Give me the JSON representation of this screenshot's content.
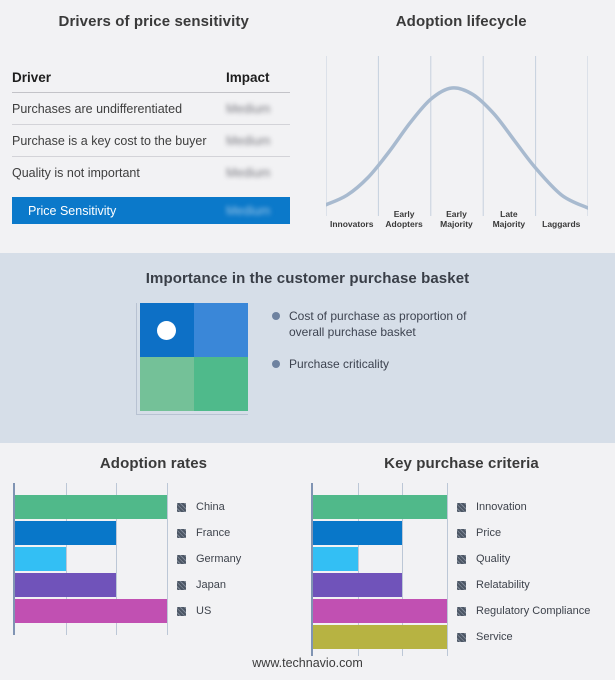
{
  "page": {
    "footer_url": "www.technavio.com"
  },
  "palette": {
    "page_background": "#f2f2f4",
    "band_background": "#d6dee8",
    "accent_blue": "#0b79ca"
  },
  "chart_data": [
    {
      "type": "table",
      "title": "Drivers of price sensitivity",
      "columns": [
        "Driver",
        "Impact"
      ],
      "rows": [
        {
          "driver": "Purchases are undifferentiated",
          "impact": "Medium"
        },
        {
          "driver": "Purchase is a key cost to the buyer",
          "impact": "Medium"
        },
        {
          "driver": "Quality is not important",
          "impact": "Medium"
        }
      ],
      "highlight_row": {
        "driver": "Price Sensitivity",
        "impact": "Medium",
        "background": "#0b79ca"
      }
    },
    {
      "type": "line",
      "title": "Adoption lifecycle",
      "categories": [
        "Innovators",
        "Early Adopters",
        "Early Majority",
        "Late Majority",
        "Laggards"
      ],
      "curve": "bell",
      "curve_points": [
        [
          0,
          0.93
        ],
        [
          0.08,
          0.87
        ],
        [
          0.16,
          0.76
        ],
        [
          0.24,
          0.6
        ],
        [
          0.32,
          0.42
        ],
        [
          0.4,
          0.27
        ],
        [
          0.48,
          0.2
        ],
        [
          0.56,
          0.24
        ],
        [
          0.64,
          0.36
        ],
        [
          0.72,
          0.53
        ],
        [
          0.8,
          0.7
        ],
        [
          0.9,
          0.87
        ],
        [
          1,
          0.95
        ]
      ],
      "curve_color": "#a8bacf",
      "grid_color": "#c6d0de",
      "grid": "vertical-only",
      "legend_position": "none"
    },
    {
      "type": "quadrant",
      "title": "Importance in the customer purchase basket",
      "legend": [
        "Cost of purchase as proportion of overall purchase basket",
        "Purchase criticality"
      ],
      "legend_bullet_color": "#6e82a0",
      "cells": {
        "top_left": "#0d70c6",
        "top_right": "#3a87d8",
        "bottom_left": "#74c198",
        "bottom_right": "#4fba8b"
      },
      "marker": {
        "cell": "top_left",
        "color": "#ffffff"
      }
    },
    {
      "type": "bar",
      "title": "Adoption rates",
      "orientation": "horizontal",
      "categories": [
        "China",
        "France",
        "Germany",
        "Japan",
        "US"
      ],
      "values": [
        100,
        66.7,
        33.3,
        66.7,
        100
      ],
      "xlim": [
        0,
        100
      ],
      "gridlines": [
        33.3,
        66.7,
        100
      ],
      "colors": [
        "#50b98a",
        "#0877c9",
        "#33bff4",
        "#7053ba",
        "#c150b2"
      ],
      "legend_position": "right",
      "grid": "vertical-only"
    },
    {
      "type": "bar",
      "title": "Key purchase criteria",
      "orientation": "horizontal",
      "categories": [
        "Innovation",
        "Price",
        "Quality",
        "Relatability",
        "Regulatory Compliance",
        "Service"
      ],
      "values": [
        100,
        66.7,
        33.3,
        66.7,
        100,
        100
      ],
      "xlim": [
        0,
        100
      ],
      "gridlines": [
        33.3,
        66.7,
        100
      ],
      "colors": [
        "#50b98a",
        "#0877c9",
        "#33bff4",
        "#7053ba",
        "#c150b2",
        "#b7b342"
      ],
      "legend_position": "right",
      "grid": "vertical-only"
    }
  ]
}
